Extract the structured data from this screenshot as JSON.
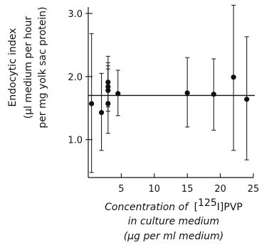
{
  "chart_data": {
    "type": "scatter",
    "ylabel_lines": [
      "Endocytic index",
      "(μl medium per hour",
      "per mg yolk sac protein)"
    ],
    "xlabel": {
      "line1_prefix": "Concentration of",
      "line1_iso": "125",
      "line1_element": "I",
      "line1_suffix": "PVP",
      "line2": "in culture medium",
      "line3": "(μg per ml medium)"
    },
    "xlim": [
      0,
      25
    ],
    "ylim": [
      0.4,
      3.1
    ],
    "xticks": [
      5,
      10,
      15,
      20,
      25
    ],
    "xtick_labels": [
      "5",
      "10",
      "15",
      "20",
      "25"
    ],
    "yticks": [
      1.0,
      2.0,
      3.0
    ],
    "ytick_labels": [
      "1.0",
      "2.0",
      "3.0"
    ],
    "mean_line_y": 1.7,
    "points": [
      {
        "x": 0.5,
        "y": 1.57,
        "low": 0.48,
        "high": 2.68
      },
      {
        "x": 2.0,
        "y": 1.43,
        "low": 0.83,
        "high": 2.05
      },
      {
        "x": 3.0,
        "y": 1.57,
        "low": 1.1,
        "high": 2.32
      },
      {
        "x": 3.0,
        "y": 1.78,
        "low": 1.45,
        "high": 2.12
      },
      {
        "x": 3.0,
        "y": 1.84,
        "low": 1.52,
        "high": 2.17
      },
      {
        "x": 3.0,
        "y": 1.91,
        "low": 1.6,
        "high": 2.22
      },
      {
        "x": 4.5,
        "y": 1.73,
        "low": 1.38,
        "high": 2.1
      },
      {
        "x": 15.0,
        "y": 1.74,
        "low": 1.2,
        "high": 2.3
      },
      {
        "x": 19.0,
        "y": 1.72,
        "low": 1.15,
        "high": 2.28
      },
      {
        "x": 22.0,
        "y": 1.99,
        "low": 0.83,
        "high": 3.13
      },
      {
        "x": 24.0,
        "y": 1.64,
        "low": 0.68,
        "high": 2.63
      }
    ]
  }
}
